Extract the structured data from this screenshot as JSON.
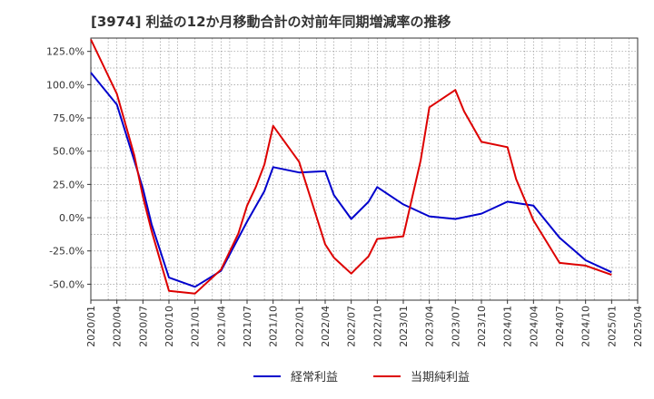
{
  "chart_data": {
    "type": "line",
    "title": "[3974]  利益の12か月移動合計の対前年同期増減率の推移",
    "xlabel": "",
    "ylabel": "",
    "ylim": [
      -62,
      135
    ],
    "yticks": [
      125,
      100,
      75,
      50,
      25,
      0,
      -25,
      -50
    ],
    "ytick_labels": [
      "125.0%",
      "100.0%",
      "75.0%",
      "50.0%",
      "25.0%",
      "0.0%",
      "-25.0%",
      "-50.0%"
    ],
    "xtick_labels": [
      "2020/01",
      "2020/04",
      "2020/07",
      "2020/10",
      "2021/01",
      "2021/04",
      "2021/07",
      "2021/10",
      "2022/01",
      "2022/04",
      "2022/07",
      "2022/10",
      "2023/01",
      "2023/04",
      "2023/07",
      "2023/10",
      "2024/01",
      "2024/04",
      "2024/07",
      "2024/10",
      "2025/01",
      "2025/04"
    ],
    "grid": true,
    "legend_position": "bottom",
    "series": [
      {
        "name": "経常利益",
        "color": "#0000cc",
        "points": [
          [
            0,
            109
          ],
          [
            3,
            85
          ],
          [
            5,
            43
          ],
          [
            6,
            22
          ],
          [
            7,
            -5
          ],
          [
            9,
            -45
          ],
          [
            12,
            -52
          ],
          [
            15,
            -40
          ],
          [
            18,
            -3
          ],
          [
            20,
            20
          ],
          [
            21,
            38
          ],
          [
            24,
            34
          ],
          [
            27,
            35
          ],
          [
            28,
            17
          ],
          [
            30,
            -1
          ],
          [
            32,
            12
          ],
          [
            33,
            23
          ],
          [
            36,
            10
          ],
          [
            39,
            1
          ],
          [
            42,
            -1
          ],
          [
            45,
            3
          ],
          [
            48,
            12
          ],
          [
            51,
            9
          ],
          [
            54,
            -15
          ],
          [
            57,
            -32
          ],
          [
            60,
            -41
          ]
        ]
      },
      {
        "name": "当期純利益",
        "color": "#dd0000",
        "points": [
          [
            0,
            134
          ],
          [
            3,
            93
          ],
          [
            5,
            47
          ],
          [
            6,
            16
          ],
          [
            7,
            -10
          ],
          [
            9,
            -55
          ],
          [
            12,
            -57
          ],
          [
            15,
            -39
          ],
          [
            17,
            -12
          ],
          [
            18,
            9
          ],
          [
            19,
            23
          ],
          [
            20,
            40
          ],
          [
            21,
            69
          ],
          [
            24,
            42
          ],
          [
            27,
            -20
          ],
          [
            28,
            -30
          ],
          [
            30,
            -42
          ],
          [
            32,
            -29
          ],
          [
            33,
            -16
          ],
          [
            36,
            -14
          ],
          [
            38,
            43
          ],
          [
            39,
            83
          ],
          [
            42,
            96
          ],
          [
            43,
            80
          ],
          [
            45,
            57
          ],
          [
            48,
            53
          ],
          [
            49,
            29
          ],
          [
            51,
            -2
          ],
          [
            54,
            -34
          ],
          [
            57,
            -36
          ],
          [
            60,
            -43
          ]
        ]
      }
    ]
  }
}
